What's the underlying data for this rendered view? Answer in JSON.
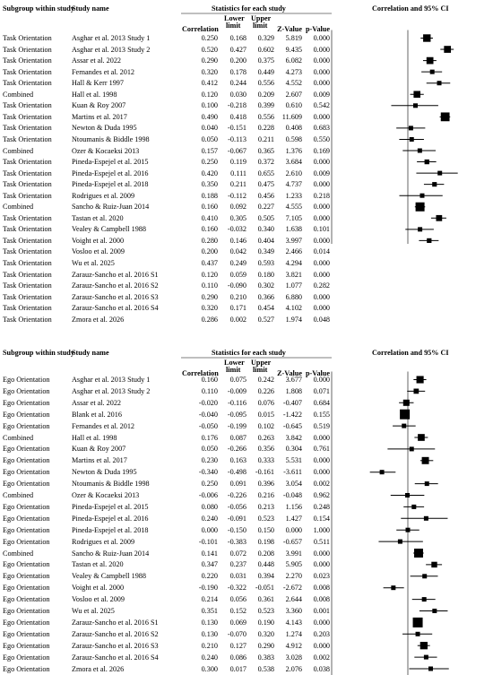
{
  "chart_data": [
    {
      "type": "forest",
      "headers": {
        "subgroup": "Subgroup within study",
        "study": "Study name",
        "stats": "Statistics for each study",
        "correlation": "Correlation",
        "lower": "Lower",
        "lower2": "limit",
        "upper": "Upper",
        "upper2": "limit",
        "z": "Z-Value",
        "p": "p-Value",
        "plot": "Correlation and 95% CI"
      },
      "xlim": [
        -1.0,
        1.0
      ],
      "xticks": [
        "-1.00",
        "-0.50",
        "0.00",
        "0.50",
        "1.00"
      ],
      "rows": [
        {
          "group": "Task Orientation",
          "study": "Asghar et al. 2013 Study 1",
          "r": "0.250",
          "lo": "0.168",
          "up": "0.329",
          "z": "5.819",
          "p": "0.000"
        },
        {
          "group": "Task Orientation",
          "study": "Asghar et al. 2013 Study 2",
          "r": "0.520",
          "lo": "0.427",
          "up": "0.602",
          "z": "9.435",
          "p": "0.000"
        },
        {
          "group": "Task Orientation",
          "study": "Assar et al. 2022",
          "r": "0.290",
          "lo": "0.200",
          "up": "0.375",
          "z": "6.082",
          "p": "0.000"
        },
        {
          "group": "Task Orientation",
          "study": "Fernandes et al. 2012",
          "r": "0.320",
          "lo": "0.178",
          "up": "0.449",
          "z": "4.273",
          "p": "0.000"
        },
        {
          "group": "Task Orientation",
          "study": "Hall & Kerr 1997",
          "r": "0.412",
          "lo": "0.244",
          "up": "0.556",
          "z": "4.552",
          "p": "0.000"
        },
        {
          "group": "Combined",
          "study": "Hall et al. 1998",
          "r": "0.120",
          "lo": "0.030",
          "up": "0.209",
          "z": "2.607",
          "p": "0.009"
        },
        {
          "group": "Task Orientation",
          "study": "Kuan & Roy 2007",
          "r": "0.100",
          "lo": "-0.218",
          "up": "0.399",
          "z": "0.610",
          "p": "0.542"
        },
        {
          "group": "Task Orientation",
          "study": "Martins et al. 2017",
          "r": "0.490",
          "lo": "0.418",
          "up": "0.556",
          "z": "11.609",
          "p": "0.000"
        },
        {
          "group": "Task Orientation",
          "study": "Newton & Duda 1995",
          "r": "0.040",
          "lo": "-0.151",
          "up": "0.228",
          "z": "0.408",
          "p": "0.683"
        },
        {
          "group": "Task Orientation",
          "study": "Ntoumanis & Biddle 1998",
          "r": "0.050",
          "lo": "-0.113",
          "up": "0.211",
          "z": "0.598",
          "p": "0.550"
        },
        {
          "group": "Combined",
          "study": "Ozer & Kocaeksi 2013",
          "r": "0.157",
          "lo": "-0.067",
          "up": "0.365",
          "z": "1.376",
          "p": "0.169"
        },
        {
          "group": "Task Orientation",
          "study": "Pineda-Espejel et al. 2015",
          "r": "0.250",
          "lo": "0.119",
          "up": "0.372",
          "z": "3.684",
          "p": "0.000"
        },
        {
          "group": "Task Orientation",
          "study": "Pineda-Espejel et al. 2016",
          "r": "0.420",
          "lo": "0.111",
          "up": "0.655",
          "z": "2.610",
          "p": "0.009"
        },
        {
          "group": "Task Orientation",
          "study": "Pineda-Espejel et al. 2018",
          "r": "0.350",
          "lo": "0.211",
          "up": "0.475",
          "z": "4.737",
          "p": "0.000"
        },
        {
          "group": "Task Orientation",
          "study": "Rodrigues et al. 2009",
          "r": "0.188",
          "lo": "-0.112",
          "up": "0.456",
          "z": "1.233",
          "p": "0.218"
        },
        {
          "group": "Combined",
          "study": "Sancho & Ruiz-Juan 2014",
          "r": "0.160",
          "lo": "0.092",
          "up": "0.227",
          "z": "4.555",
          "p": "0.000"
        },
        {
          "group": "Task Orientation",
          "study": "Tastan et al. 2020",
          "r": "0.410",
          "lo": "0.305",
          "up": "0.505",
          "z": "7.105",
          "p": "0.000"
        },
        {
          "group": "Task Orientation",
          "study": "Vealey & Campbell 1988",
          "r": "0.160",
          "lo": "-0.032",
          "up": "0.340",
          "z": "1.638",
          "p": "0.101"
        },
        {
          "group": "Task Orientation",
          "study": "Voight et al. 2000",
          "r": "0.280",
          "lo": "0.146",
          "up": "0.404",
          "z": "3.997",
          "p": "0.000"
        },
        {
          "group": "Task Orientation",
          "study": "Vosloo et al. 2009",
          "r": "0.200",
          "lo": "0.042",
          "up": "0.349",
          "z": "2.466",
          "p": "0.014"
        },
        {
          "group": "Task Orientation",
          "study": "Wu et al. 2025",
          "r": "0.437",
          "lo": "0.249",
          "up": "0.593",
          "z": "4.294",
          "p": "0.000"
        },
        {
          "group": "Task Orientation",
          "study": "Zarauz-Sancho et al. 2016 S1",
          "r": "0.120",
          "lo": "0.059",
          "up": "0.180",
          "z": "3.821",
          "p": "0.000"
        },
        {
          "group": "Task Orientation",
          "study": "Zarauz-Sancho et al. 2016 S2",
          "r": "0.110",
          "lo": "-0.090",
          "up": "0.302",
          "z": "1.077",
          "p": "0.282"
        },
        {
          "group": "Task Orientation",
          "study": "Zarauz-Sancho et al. 2016 S3",
          "r": "0.290",
          "lo": "0.210",
          "up": "0.366",
          "z": "6.880",
          "p": "0.000"
        },
        {
          "group": "Task Orientation",
          "study": "Zarauz-Sancho et al. 2016 S4",
          "r": "0.320",
          "lo": "0.171",
          "up": "0.454",
          "z": "4.102",
          "p": "0.000"
        },
        {
          "group": "Task Orientation",
          "study": "Zmora et al. 2026",
          "r": "0.286",
          "lo": "0.002",
          "up": "0.527",
          "z": "1.974",
          "p": "0.048"
        }
      ]
    },
    {
      "type": "forest",
      "headers": {
        "subgroup": "Subgroup within study",
        "study": "Study name",
        "stats": "Statistics for each study",
        "correlation": "Correlation",
        "lower": "Lower",
        "lower2": "limit",
        "upper": "Upper",
        "upper2": "limit",
        "z": "Z-Value",
        "p": "p-Value",
        "plot": "Correlation and 95% CI"
      },
      "xlim": [
        -1.0,
        1.0
      ],
      "xticks": [
        "-1.00",
        "-0.50",
        "0.00",
        "0.50",
        "1.00"
      ],
      "rows": [
        {
          "group": "Ego Orientation",
          "study": "Asghar et al. 2013 Study 1",
          "r": "0.160",
          "lo": "0.075",
          "up": "0.242",
          "z": "3.677",
          "p": "0.000"
        },
        {
          "group": "Ego Orientation",
          "study": "Asghar et al. 2013 Study 2",
          "r": "0.110",
          "lo": "-0.009",
          "up": "0.226",
          "z": "1.808",
          "p": "0.071"
        },
        {
          "group": "Ego Orientation",
          "study": "Assar et al. 2022",
          "r": "-0.020",
          "lo": "-0.116",
          "up": "0.076",
          "z": "-0.407",
          "p": "0.684"
        },
        {
          "group": "Ego Orientation",
          "study": "Blank et al. 2016",
          "r": "-0.040",
          "lo": "-0.095",
          "up": "0.015",
          "z": "-1.422",
          "p": "0.155"
        },
        {
          "group": "Ego Orientation",
          "study": "Fernandes et al. 2012",
          "r": "-0.050",
          "lo": "-0.199",
          "up": "0.102",
          "z": "-0.645",
          "p": "0.519"
        },
        {
          "group": "Combined",
          "study": "Hall et al. 1998",
          "r": "0.176",
          "lo": "0.087",
          "up": "0.263",
          "z": "3.842",
          "p": "0.000"
        },
        {
          "group": "Ego Orientation",
          "study": "Kuan & Roy 2007",
          "r": "0.050",
          "lo": "-0.266",
          "up": "0.356",
          "z": "0.304",
          "p": "0.761"
        },
        {
          "group": "Ego Orientation",
          "study": "Martins et al. 2017",
          "r": "0.230",
          "lo": "0.163",
          "up": "0.333",
          "z": "5.531",
          "p": "0.000"
        },
        {
          "group": "Ego Orientation",
          "study": "Newton & Duda 1995",
          "r": "-0.340",
          "lo": "-0.498",
          "up": "-0.161",
          "z": "-3.611",
          "p": "0.000"
        },
        {
          "group": "Ego Orientation",
          "study": "Ntoumanis & Biddle 1998",
          "r": "0.250",
          "lo": "0.091",
          "up": "0.396",
          "z": "3.054",
          "p": "0.002"
        },
        {
          "group": "Combined",
          "study": "Ozer & Kocaeksi 2013",
          "r": "-0.006",
          "lo": "-0.226",
          "up": "0.216",
          "z": "-0.048",
          "p": "0.962"
        },
        {
          "group": "Ego Orientation",
          "study": "Pineda-Espejel et al. 2015",
          "r": "0.080",
          "lo": "-0.056",
          "up": "0.213",
          "z": "1.156",
          "p": "0.248"
        },
        {
          "group": "Ego Orientation",
          "study": "Pineda-Espejel et al. 2016",
          "r": "0.240",
          "lo": "-0.091",
          "up": "0.523",
          "z": "1.427",
          "p": "0.154"
        },
        {
          "group": "Ego Orientation",
          "study": "Pineda-Espejel et al. 2018",
          "r": "0.000",
          "lo": "-0.150",
          "up": "0.150",
          "z": "0.000",
          "p": "1.000"
        },
        {
          "group": "Ego Orientation",
          "study": "Rodrigues et al. 2009",
          "r": "-0.101",
          "lo": "-0.383",
          "up": "0.198",
          "z": "-0.657",
          "p": "0.511"
        },
        {
          "group": "Combined",
          "study": "Sancho & Ruiz-Juan 2014",
          "r": "0.141",
          "lo": "0.072",
          "up": "0.208",
          "z": "3.991",
          "p": "0.000"
        },
        {
          "group": "Ego Orientation",
          "study": "Tastan et al. 2020",
          "r": "0.347",
          "lo": "0.237",
          "up": "0.448",
          "z": "5.905",
          "p": "0.000"
        },
        {
          "group": "Ego Orientation",
          "study": "Vealey & Campbell 1988",
          "r": "0.220",
          "lo": "0.031",
          "up": "0.394",
          "z": "2.270",
          "p": "0.023"
        },
        {
          "group": "Ego Orientation",
          "study": "Voight et al. 2000",
          "r": "-0.190",
          "lo": "-0.322",
          "up": "-0.051",
          "z": "-2.672",
          "p": "0.008"
        },
        {
          "group": "Ego Orientation",
          "study": "Vosloo et al. 2009",
          "r": "0.214",
          "lo": "0.056",
          "up": "0.361",
          "z": "2.644",
          "p": "0.008"
        },
        {
          "group": "Ego Orientation",
          "study": "Wu et al. 2025",
          "r": "0.351",
          "lo": "0.152",
          "up": "0.523",
          "z": "3.360",
          "p": "0.001"
        },
        {
          "group": "Ego Orientation",
          "study": "Zarauz-Sancho et al. 2016 S1",
          "r": "0.130",
          "lo": "0.069",
          "up": "0.190",
          "z": "4.143",
          "p": "0.000"
        },
        {
          "group": "Ego Orientation",
          "study": "Zarauz-Sancho et al. 2016 S2",
          "r": "0.130",
          "lo": "-0.070",
          "up": "0.320",
          "z": "1.274",
          "p": "0.203"
        },
        {
          "group": "Ego Orientation",
          "study": "Zarauz-Sancho et al. 2016 S3",
          "r": "0.210",
          "lo": "0.127",
          "up": "0.290",
          "z": "4.912",
          "p": "0.000"
        },
        {
          "group": "Ego Orientation",
          "study": "Zarauz-Sancho et al. 2016 S4",
          "r": "0.240",
          "lo": "0.086",
          "up": "0.383",
          "z": "3.028",
          "p": "0.002"
        },
        {
          "group": "Ego Orientation",
          "study": "Zmora et al. 2026",
          "r": "0.300",
          "lo": "0.017",
          "up": "0.538",
          "z": "2.076",
          "p": "0.038"
        }
      ]
    }
  ]
}
